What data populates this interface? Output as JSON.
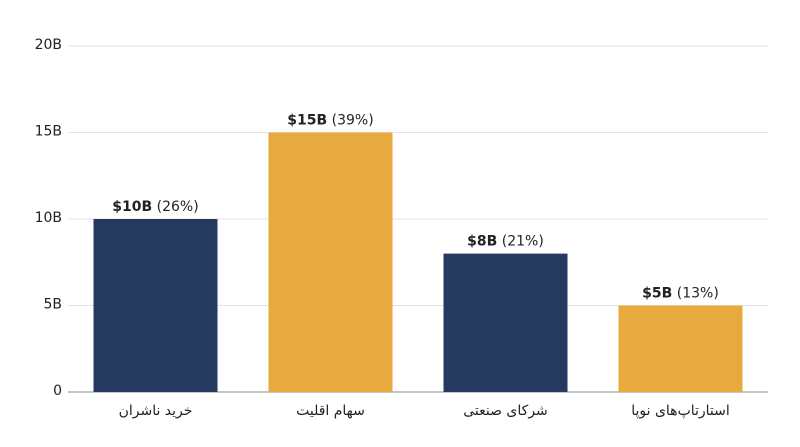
{
  "chart_data": {
    "type": "bar",
    "categories": [
      "خرید ناشران",
      "سهام اقلیت",
      "شرکای صنعتی",
      "استارتاپ‌های نوپا"
    ],
    "values": [
      10,
      15,
      8,
      5
    ],
    "value_labels": [
      "$10B",
      "$15B",
      "$8B",
      "$5B"
    ],
    "shares": [
      26,
      39,
      21,
      13
    ],
    "share_labels": [
      "(26%)",
      "(39%)",
      "(21%)",
      "(13%)"
    ],
    "colors": [
      "#253a5e",
      "#e8a93e",
      "#253a5e",
      "#e8a93e"
    ],
    "ylim": [
      0,
      20
    ],
    "yticks": [
      0,
      {
        "value": 5,
        "label": "5B"
      },
      {
        "value": 10,
        "label": "10B"
      },
      {
        "value": 15,
        "label": "15B"
      },
      {
        "value": 20,
        "label": "20B"
      }
    ],
    "grid": true
  }
}
